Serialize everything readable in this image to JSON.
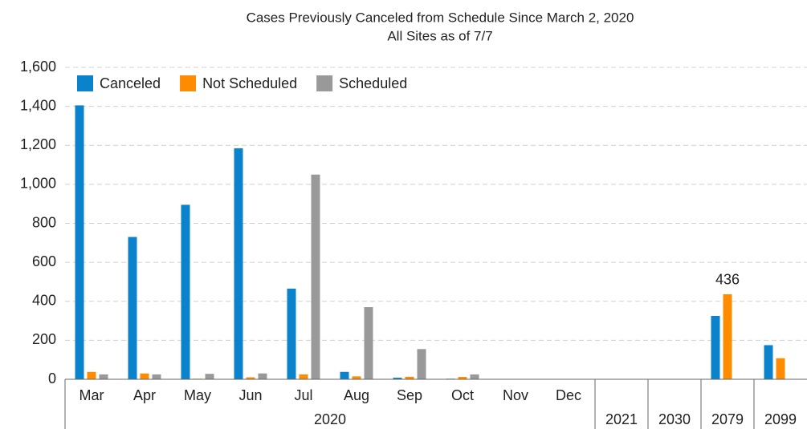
{
  "chart_data": {
    "type": "bar",
    "title": "Cases Previously Canceled from Schedule Since March 2, 2020",
    "subtitle": "All Sites as of 7/7",
    "categories": [
      "Mar",
      "Apr",
      "May",
      "Jun",
      "Jul",
      "Aug",
      "Sep",
      "Oct",
      "Nov",
      "Dec",
      null,
      null,
      null,
      null
    ],
    "groups": [
      {
        "label": "2020",
        "span": 10
      },
      {
        "label": "2021",
        "span": 1
      },
      {
        "label": "2030",
        "span": 1
      },
      {
        "label": "2079",
        "span": 1
      },
      {
        "label": "2099",
        "span": 1
      }
    ],
    "series": [
      {
        "name": "Canceled",
        "color": "#0a82cc",
        "values": [
          1405,
          730,
          895,
          1185,
          465,
          38,
          8,
          3,
          0,
          0,
          0,
          0,
          325,
          175
        ]
      },
      {
        "name": "Not Scheduled",
        "color": "#ff8c00",
        "values": [
          38,
          30,
          3,
          10,
          25,
          15,
          13,
          12,
          0,
          0,
          0,
          0,
          436,
          108
        ],
        "value_labels": [
          null,
          null,
          null,
          null,
          null,
          null,
          null,
          null,
          null,
          null,
          null,
          null,
          "436",
          null
        ]
      },
      {
        "name": "Scheduled",
        "color": "#999999",
        "values": [
          25,
          25,
          28,
          30,
          1050,
          370,
          155,
          25,
          0,
          0,
          0,
          0,
          0,
          0
        ]
      }
    ],
    "ylim": [
      0,
      1600
    ],
    "yticks": [
      0,
      200,
      400,
      600,
      800,
      {
        "value": 1000,
        "label": "1,000"
      },
      {
        "value": 1200,
        "label": "1,200"
      },
      {
        "value": 1400,
        "label": "1,400"
      },
      {
        "value": 1600,
        "label": "1,600"
      }
    ],
    "grid": true,
    "legend": "top-left"
  }
}
